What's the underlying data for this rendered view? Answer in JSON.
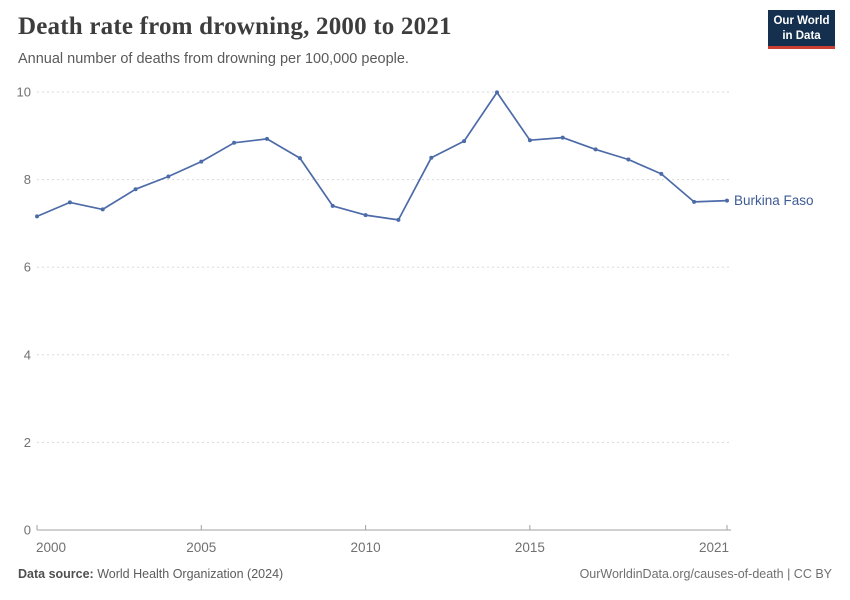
{
  "header": {
    "title": "Death rate from drowning, 2000 to 2021",
    "subtitle": "Annual number of deaths from drowning per 100,000 people.",
    "logo": {
      "line1": "Our World",
      "line2": "in Data",
      "bg_color": "#14304e",
      "accent_color": "#cc3f33"
    }
  },
  "chart_data": {
    "type": "line",
    "title": "Death rate from drowning, 2000 to 2021",
    "xlabel": "",
    "ylabel": "",
    "x": [
      2000,
      2001,
      2002,
      2003,
      2004,
      2005,
      2006,
      2007,
      2008,
      2009,
      2010,
      2011,
      2012,
      2013,
      2014,
      2015,
      2016,
      2017,
      2018,
      2019,
      2020,
      2021
    ],
    "series": [
      {
        "name": "Burkina Faso",
        "color": "#4c6ba8",
        "values": [
          7.16,
          7.48,
          7.32,
          7.78,
          8.07,
          8.41,
          8.84,
          8.93,
          8.49,
          7.4,
          7.19,
          7.08,
          8.5,
          8.88,
          9.99,
          8.9,
          8.96,
          8.69,
          8.46,
          8.13,
          7.49,
          7.52
        ]
      }
    ],
    "ylim": [
      0,
      10
    ],
    "yticks": [
      0,
      2,
      4,
      6,
      8,
      10
    ],
    "xticks": [
      2000,
      2005,
      2010,
      2015,
      2021
    ],
    "grid": "horizontal-dashed",
    "legend_position": "end-of-line-label",
    "entity_label_color": "#3d5b94",
    "axis_text_color": "#717171",
    "axis_line_color": "#a1a1a1",
    "gridline_color": "#dadada"
  },
  "footer": {
    "source_label": "Data source:",
    "source_text": " World Health Organization (2024)",
    "attribution": "OurWorldinData.org/causes-of-death | CC BY"
  }
}
